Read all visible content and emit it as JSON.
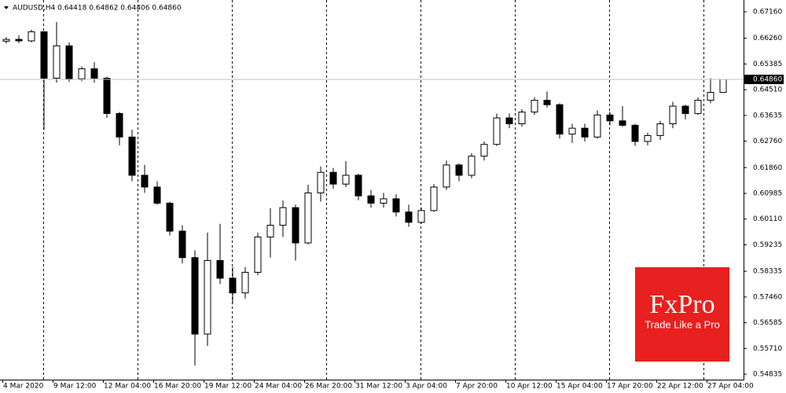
{
  "chart_data": {
    "type": "candlestick",
    "title": "AUDUSD,H4  0.64418 0.64862 0.64406 0.64860",
    "categories": [
      "4 Mar 2020",
      null,
      null,
      null,
      "9 Mar 12:00",
      null,
      null,
      null,
      "12 Mar 04:00",
      null,
      null,
      null,
      "16 Mar 20:00",
      null,
      null,
      null,
      "19 Mar 12:00",
      null,
      null,
      null,
      "24 Mar 04:00",
      null,
      null,
      null,
      "26 Mar 20:00",
      null,
      null,
      null,
      "31 Mar 12:00",
      null,
      null,
      null,
      "3 Apr 04:00",
      null,
      null,
      null,
      "7 Apr 20:00",
      null,
      null,
      null,
      "10 Apr 12:00",
      null,
      null,
      null,
      "15 Apr 04:00",
      null,
      null,
      null,
      "17 Apr 20:00",
      null,
      null,
      null,
      "22 Apr 12:00",
      null,
      null,
      null,
      "27 Apr 04:00",
      null
    ],
    "open": [
      0.6616,
      0.6622,
      0.6617,
      0.6648,
      0.649,
      0.66,
      0.6488,
      0.6522,
      0.649,
      0.637,
      0.629,
      0.616,
      0.612,
      0.6065,
      0.597,
      0.588,
      0.562,
      0.587,
      0.581,
      0.576,
      0.583,
      0.595,
      0.599,
      0.605,
      0.593,
      0.61,
      0.617,
      0.613,
      0.616,
      0.609,
      0.6065,
      0.608,
      0.6035,
      0.6,
      0.604,
      0.612,
      0.6195,
      0.616,
      0.6225,
      0.6265,
      0.6355,
      0.6335,
      0.6375,
      0.6415,
      0.64,
      0.63,
      0.632,
      0.629,
      0.6365,
      0.6345,
      0.633,
      0.6275,
      0.6295,
      0.6335,
      0.6395,
      0.637,
      0.6415,
      0.64418
    ],
    "high": [
      0.663,
      0.6636,
      0.6655,
      0.665,
      0.6681,
      0.6612,
      0.653,
      0.6545,
      0.6495,
      0.6375,
      0.6315,
      0.6195,
      0.614,
      0.607,
      0.599,
      0.5905,
      0.5965,
      0.5995,
      0.5848,
      0.5848,
      0.5965,
      0.6048,
      0.6074,
      0.606,
      0.6128,
      0.619,
      0.6185,
      0.6208,
      0.6165,
      0.611,
      0.61,
      0.6095,
      0.606,
      0.605,
      0.613,
      0.621,
      0.62,
      0.6235,
      0.6275,
      0.637,
      0.637,
      0.6385,
      0.6425,
      0.6445,
      0.6405,
      0.6335,
      0.6335,
      0.638,
      0.6375,
      0.6395,
      0.6335,
      0.6305,
      0.6345,
      0.641,
      0.64,
      0.6425,
      0.649,
      0.64862
    ],
    "low": [
      0.6608,
      0.6609,
      0.6612,
      0.6315,
      0.6475,
      0.6478,
      0.648,
      0.6475,
      0.6355,
      0.6262,
      0.614,
      0.61,
      0.606,
      0.5955,
      0.586,
      0.5513,
      0.558,
      0.579,
      0.5727,
      0.574,
      0.582,
      0.588,
      0.595,
      0.587,
      0.5925,
      0.607,
      0.6115,
      0.612,
      0.6075,
      0.605,
      0.605,
      0.602,
      0.5985,
      0.5995,
      0.6035,
      0.611,
      0.614,
      0.615,
      0.621,
      0.626,
      0.632,
      0.6325,
      0.6365,
      0.639,
      0.6285,
      0.627,
      0.6275,
      0.6285,
      0.633,
      0.6325,
      0.626,
      0.6262,
      0.628,
      0.632,
      0.635,
      0.6365,
      0.6405,
      0.64406
    ],
    "close": [
      0.6622,
      0.6617,
      0.6648,
      0.649,
      0.66,
      0.6488,
      0.6522,
      0.649,
      0.637,
      0.629,
      0.616,
      0.612,
      0.6065,
      0.597,
      0.588,
      0.562,
      0.587,
      0.581,
      0.576,
      0.583,
      0.595,
      0.599,
      0.605,
      0.593,
      0.61,
      0.617,
      0.613,
      0.616,
      0.609,
      0.6065,
      0.608,
      0.6035,
      0.6,
      0.604,
      0.612,
      0.6195,
      0.616,
      0.6225,
      0.6265,
      0.6355,
      0.6335,
      0.6375,
      0.6415,
      0.64,
      0.63,
      0.632,
      0.629,
      0.6365,
      0.6345,
      0.633,
      0.6275,
      0.6295,
      0.6335,
      0.6395,
      0.637,
      0.6415,
      0.6442,
      0.6486
    ],
    "up_color": "#ffffff",
    "down_color": "#000000",
    "ylim": [
      0.5465,
      0.6756
    ],
    "yticks": [
      {
        "value": 0.6716,
        "label": "0.67160"
      },
      {
        "value": 0.6626,
        "label": "0.66260"
      },
      {
        "value": 0.65385,
        "label": "0.65385"
      },
      {
        "value": 0.6451,
        "label": "0.64510"
      },
      {
        "value": 0.63635,
        "label": "0.63635"
      },
      {
        "value": 0.6276,
        "label": "0.62760"
      },
      {
        "value": 0.6186,
        "label": "0.61860"
      },
      {
        "value": 0.60985,
        "label": "0.60985"
      },
      {
        "value": 0.6011,
        "label": "0.60110"
      },
      {
        "value": 0.59235,
        "label": "0.59235"
      },
      {
        "value": 0.58335,
        "label": "0.58335"
      },
      {
        "value": 0.5746,
        "label": "0.57460"
      },
      {
        "value": 0.56585,
        "label": "0.56585"
      },
      {
        "value": 0.5571,
        "label": "0.55710"
      },
      {
        "value": 0.54835,
        "label": "0.54835"
      }
    ],
    "last_price": {
      "value": 0.6486,
      "label": "0.64860"
    },
    "watermark": {
      "brand": "FxPro",
      "tagline": "Trade Like a Pro",
      "color": "#e8201f"
    }
  }
}
